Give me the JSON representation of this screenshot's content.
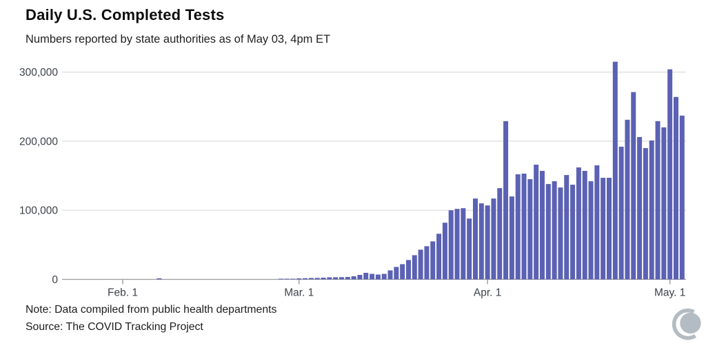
{
  "header": {
    "title": "Daily U.S. Completed Tests",
    "subtitle": "Numbers reported by state authorities as of May 03, 4pm ET"
  },
  "footer": {
    "note": "Note: Data compiled from public health departments",
    "source": "Source: The COVID Tracking Project",
    "logo": "covid-tracking-project-logo"
  },
  "colors": {
    "bar": "#5b61b3",
    "gridline": "#dcdcdc",
    "axis": "#9b9b9b",
    "tick_text": "#3d4249",
    "logo": "#b4bcc3"
  },
  "chart_data": {
    "type": "bar",
    "title": "Daily U.S. Completed Tests",
    "subtitle": "Numbers reported by state authorities as of May 03, 4pm ET",
    "xlabel": "",
    "ylabel": "",
    "ylim": [
      0,
      320000
    ],
    "grid": "horizontal",
    "legend": "none",
    "yticks": [
      0,
      100000,
      200000,
      300000
    ],
    "ytick_labels": [
      "0",
      "100,000",
      "200,000",
      "300,000"
    ],
    "xtick_labels": [
      "Feb. 1",
      "Mar. 1",
      "Apr. 1",
      "May. 1"
    ],
    "xtick_day_offsets": [
      0,
      29,
      60,
      90
    ],
    "dates": [
      "Feb 1",
      "Feb 2",
      "Feb 3",
      "Feb 4",
      "Feb 5",
      "Feb 6",
      "Feb 7",
      "Feb 8",
      "Feb 9",
      "Feb 10",
      "Feb 11",
      "Feb 12",
      "Feb 13",
      "Feb 14",
      "Feb 15",
      "Feb 16",
      "Feb 17",
      "Feb 18",
      "Feb 19",
      "Feb 20",
      "Feb 21",
      "Feb 22",
      "Feb 23",
      "Feb 24",
      "Feb 25",
      "Feb 26",
      "Feb 27",
      "Feb 28",
      "Feb 29",
      "Mar 1",
      "Mar 2",
      "Mar 3",
      "Mar 4",
      "Mar 5",
      "Mar 6",
      "Mar 7",
      "Mar 8",
      "Mar 9",
      "Mar 10",
      "Mar 11",
      "Mar 12",
      "Mar 13",
      "Mar 14",
      "Mar 15",
      "Mar 16",
      "Mar 17",
      "Mar 18",
      "Mar 19",
      "Mar 20",
      "Mar 21",
      "Mar 22",
      "Mar 23",
      "Mar 24",
      "Mar 25",
      "Mar 26",
      "Mar 27",
      "Mar 28",
      "Mar 29",
      "Mar 30",
      "Mar 31",
      "Apr 1",
      "Apr 2",
      "Apr 3",
      "Apr 4",
      "Apr 5",
      "Apr 6",
      "Apr 7",
      "Apr 8",
      "Apr 9",
      "Apr 10",
      "Apr 11",
      "Apr 12",
      "Apr 13",
      "Apr 14",
      "Apr 15",
      "Apr 16",
      "Apr 17",
      "Apr 18",
      "Apr 19",
      "Apr 20",
      "Apr 21",
      "Apr 22",
      "Apr 23",
      "Apr 24",
      "Apr 25",
      "Apr 26",
      "Apr 27",
      "Apr 28",
      "Apr 29",
      "Apr 30",
      "May 1",
      "May 2",
      "May 3"
    ],
    "values": [
      0,
      0,
      0,
      0,
      0,
      0,
      1500,
      0,
      0,
      0,
      0,
      0,
      0,
      0,
      0,
      0,
      0,
      0,
      0,
      0,
      0,
      0,
      0,
      0,
      0,
      0,
      600,
      800,
      1000,
      1500,
      1700,
      2000,
      2100,
      2500,
      3000,
      3100,
      3200,
      3500,
      4500,
      6500,
      9500,
      8000,
      7000,
      8000,
      13000,
      18000,
      22000,
      28000,
      35000,
      43000,
      48000,
      55000,
      66000,
      82000,
      100000,
      102000,
      103000,
      88000,
      117000,
      110000,
      107000,
      117000,
      132000,
      229000,
      120000,
      152000,
      153000,
      145000,
      166000,
      157000,
      138000,
      142000,
      133000,
      151000,
      137000,
      162000,
      157000,
      142000,
      165000,
      147000,
      147000,
      315000,
      192000,
      231000,
      271000,
      206000,
      190000,
      201000,
      229000,
      220000,
      304000,
      264000,
      237000
    ]
  }
}
